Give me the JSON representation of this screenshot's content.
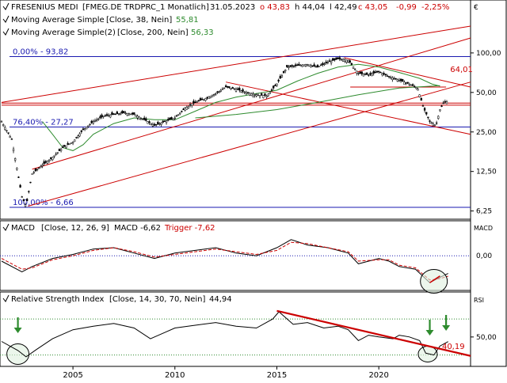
{
  "chart_data": [
    {
      "type": "candlestick",
      "header": {
        "name": "FRESENIUS MEDI",
        "symbol": "[FMEG.DE TRDPRC_1 Monatlich]",
        "date": "31.05.2023",
        "open_text": "o 43,83",
        "high_text": "h 44,04",
        "low_text": "l 42,49",
        "close_text": "c 43,05",
        "change_text": "-0,99",
        "change_pct_text": "-2,25%",
        "currency": "€"
      },
      "overlays": [
        {
          "label": "Moving Average Simple",
          "params": "[Close, 38, Nein]",
          "value": "55,81",
          "color": "#2e8b2e"
        },
        {
          "label": "Moving Average Simple(2)",
          "params": "[Close, 200, Nein]",
          "value": "56,33",
          "color": "#2e8b2e"
        }
      ],
      "y_scale": "log",
      "y_ticks": [
        {
          "label": "100,00",
          "value": 100
        },
        {
          "label": "50,00",
          "value": 50
        },
        {
          "label": "25,00",
          "value": 25
        },
        {
          "label": "12,50",
          "value": 12.5
        },
        {
          "label": "6,25",
          "value": 6.25
        }
      ],
      "ylim": [
        5.8,
        130
      ],
      "x_ticks": [
        {
          "label": "2005",
          "year": 2005
        },
        {
          "label": "2010",
          "year": 2010
        },
        {
          "label": "2015",
          "year": 2015
        },
        {
          "label": "2020",
          "year": 2020
        }
      ],
      "xlim": [
        2001.5,
        2024.5
      ],
      "fib_levels": [
        {
          "label": "0,00% - 93,82",
          "value": 93.82
        },
        {
          "label": "76,40% - 27,27",
          "value": 27.27
        },
        {
          "label": "100,00% - 6,66",
          "value": 6.66
        }
      ],
      "annotation": {
        "label": "64,01",
        "value": 64.01
      },
      "price_path": [
        [
          2001.5,
          30
        ],
        [
          2002.0,
          22
        ],
        [
          2002.5,
          8
        ],
        [
          2002.7,
          6.8
        ],
        [
          2003.0,
          12
        ],
        [
          2003.5,
          14
        ],
        [
          2004.0,
          16
        ],
        [
          2004.5,
          19
        ],
        [
          2005.0,
          21
        ],
        [
          2005.5,
          26
        ],
        [
          2006.0,
          30
        ],
        [
          2006.5,
          33
        ],
        [
          2007.0,
          34
        ],
        [
          2007.5,
          35
        ],
        [
          2008.0,
          34
        ],
        [
          2008.5,
          31
        ],
        [
          2009.0,
          28
        ],
        [
          2009.5,
          30
        ],
        [
          2010.0,
          32
        ],
        [
          2010.5,
          38
        ],
        [
          2011.0,
          42
        ],
        [
          2011.5,
          45
        ],
        [
          2012.0,
          49
        ],
        [
          2012.5,
          55
        ],
        [
          2013.0,
          53
        ],
        [
          2013.5,
          50
        ],
        [
          2014.0,
          48
        ],
        [
          2014.5,
          47
        ],
        [
          2015.0,
          58
        ],
        [
          2015.5,
          78
        ],
        [
          2016.0,
          80
        ],
        [
          2016.5,
          82
        ],
        [
          2017.0,
          78
        ],
        [
          2017.5,
          85
        ],
        [
          2018.0,
          90
        ],
        [
          2018.5,
          88
        ],
        [
          2019.0,
          70
        ],
        [
          2019.5,
          68
        ],
        [
          2020.0,
          72
        ],
        [
          2020.5,
          66
        ],
        [
          2021.0,
          62
        ],
        [
          2021.5,
          58
        ],
        [
          2021.9,
          54
        ],
        [
          2022.2,
          38
        ],
        [
          2022.5,
          30
        ],
        [
          2022.8,
          28
        ],
        [
          2023.0,
          37
        ],
        [
          2023.2,
          42
        ],
        [
          2023.4,
          43
        ]
      ],
      "ma38_path": [
        [
          2003.5,
          30
        ],
        [
          2004.0,
          24
        ],
        [
          2004.5,
          19
        ],
        [
          2005.0,
          18
        ],
        [
          2005.5,
          20
        ],
        [
          2006.0,
          24
        ],
        [
          2007.0,
          29
        ],
        [
          2008.0,
          32
        ],
        [
          2009.0,
          31
        ],
        [
          2010.0,
          31
        ],
        [
          2011.0,
          36
        ],
        [
          2012.0,
          42
        ],
        [
          2013.0,
          46
        ],
        [
          2014.0,
          49
        ],
        [
          2015.0,
          52
        ],
        [
          2016.0,
          61
        ],
        [
          2017.0,
          70
        ],
        [
          2018.0,
          78
        ],
        [
          2019.0,
          82
        ],
        [
          2020.0,
          78
        ],
        [
          2021.0,
          71
        ],
        [
          2022.0,
          64
        ],
        [
          2022.6,
          58
        ],
        [
          2023.0,
          55.8
        ]
      ],
      "ma200_path": [
        [
          2011.0,
          32
        ],
        [
          2013.0,
          34
        ],
        [
          2015.0,
          37
        ],
        [
          2017.0,
          42
        ],
        [
          2019.0,
          48
        ],
        [
          2021.0,
          54
        ],
        [
          2023.0,
          56.3
        ]
      ]
    },
    {
      "type": "line",
      "title": "MACD",
      "params": "[Close, 12, 26, 9]",
      "value_text": "MACD -6,62",
      "trigger_text": "Trigger -7,62",
      "axis_label": "MACD",
      "y_ticks": [
        {
          "label": "0,00",
          "value": 0
        }
      ],
      "ylim": [
        -12,
        8
      ],
      "series": [
        {
          "name": "MACD",
          "color": "#000000",
          "values": [
            [
              2001.5,
              -2
            ],
            [
              2002.5,
              -6
            ],
            [
              2003.0,
              -4
            ],
            [
              2004.0,
              -1
            ],
            [
              2005.0,
              0.5
            ],
            [
              2006.0,
              2.5
            ],
            [
              2007.0,
              3
            ],
            [
              2008.0,
              1
            ],
            [
              2009.0,
              -1
            ],
            [
              2010.0,
              1
            ],
            [
              2011.0,
              2
            ],
            [
              2012.0,
              3
            ],
            [
              2013.0,
              1
            ],
            [
              2014.0,
              0
            ],
            [
              2015.0,
              3
            ],
            [
              2015.7,
              6
            ],
            [
              2016.5,
              4
            ],
            [
              2017.5,
              3
            ],
            [
              2018.5,
              1
            ],
            [
              2019.0,
              -3
            ],
            [
              2020.0,
              -1
            ],
            [
              2020.5,
              -2
            ],
            [
              2021.0,
              -4
            ],
            [
              2021.8,
              -5
            ],
            [
              2022.5,
              -10
            ],
            [
              2023.0,
              -8
            ],
            [
              2023.4,
              -6.6
            ]
          ]
        },
        {
          "name": "Trigger",
          "color": "#cc0000",
          "values": [
            [
              2001.5,
              -1
            ],
            [
              2002.5,
              -5
            ],
            [
              2003.0,
              -4.5
            ],
            [
              2004.0,
              -1.5
            ],
            [
              2005.0,
              0
            ],
            [
              2006.0,
              2
            ],
            [
              2007.0,
              3
            ],
            [
              2008.0,
              1.5
            ],
            [
              2009.0,
              -0.5
            ],
            [
              2010.0,
              0.5
            ],
            [
              2011.0,
              1.5
            ],
            [
              2012.0,
              2.5
            ],
            [
              2013.0,
              1.5
            ],
            [
              2014.0,
              0.5
            ],
            [
              2015.0,
              2
            ],
            [
              2015.7,
              5
            ],
            [
              2016.5,
              4.5
            ],
            [
              2017.5,
              3
            ],
            [
              2018.5,
              1.5
            ],
            [
              2019.0,
              -2
            ],
            [
              2020.0,
              -1.5
            ],
            [
              2020.5,
              -1.5
            ],
            [
              2021.0,
              -3.5
            ],
            [
              2021.8,
              -4.5
            ],
            [
              2022.5,
              -9
            ],
            [
              2023.0,
              -8.5
            ],
            [
              2023.4,
              -7.6
            ]
          ]
        }
      ]
    },
    {
      "type": "line",
      "title": "Relative Strength Index",
      "params": "[Close, 14, 30, 70, Nein]",
      "value_text": "44,94",
      "axis_label": "RSI",
      "y_ticks": [
        {
          "label": "50,00",
          "value": 50
        }
      ],
      "ylim": [
        20,
        85
      ],
      "levels": [
        70,
        30
      ],
      "annotation": {
        "label": "40,19",
        "value": 40.19
      },
      "series": [
        {
          "name": "RSI",
          "color": "#000000",
          "values": [
            [
              2001.5,
              45
            ],
            [
              2002.3,
              35
            ],
            [
              2002.7,
              28
            ],
            [
              2003.2,
              36
            ],
            [
              2004.0,
              48
            ],
            [
              2005.0,
              58
            ],
            [
              2006.0,
              62
            ],
            [
              2007.0,
              65
            ],
            [
              2008.0,
              60
            ],
            [
              2008.8,
              48
            ],
            [
              2009.5,
              55
            ],
            [
              2010.0,
              60
            ],
            [
              2011.0,
              63
            ],
            [
              2012.0,
              66
            ],
            [
              2013.0,
              62
            ],
            [
              2014.0,
              60
            ],
            [
              2014.8,
              70
            ],
            [
              2015.1,
              78
            ],
            [
              2015.8,
              64
            ],
            [
              2016.5,
              66
            ],
            [
              2017.3,
              60
            ],
            [
              2018.0,
              62
            ],
            [
              2018.5,
              58
            ],
            [
              2019.0,
              46
            ],
            [
              2019.5,
              52
            ],
            [
              2020.0,
              50
            ],
            [
              2020.7,
              48
            ],
            [
              2021.0,
              52
            ],
            [
              2021.5,
              50
            ],
            [
              2022.0,
              46
            ],
            [
              2022.3,
              32
            ],
            [
              2022.7,
              30
            ],
            [
              2023.0,
              40
            ],
            [
              2023.4,
              44.9
            ]
          ]
        }
      ]
    }
  ]
}
